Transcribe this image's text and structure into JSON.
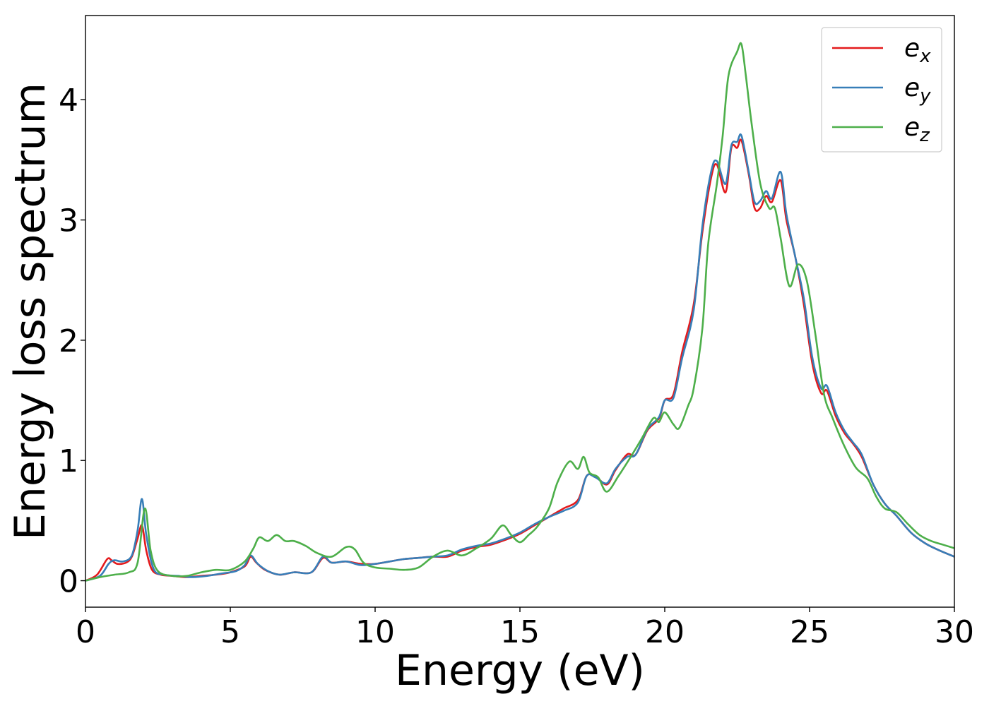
{
  "chart_data": {
    "type": "line",
    "xlabel": "Energy (eV)",
    "ylabel": "Energy loss spectrum",
    "xlim": [
      0,
      30
    ],
    "ylim": [
      -0.22,
      4.7
    ],
    "x_ticks": [
      0,
      5,
      10,
      15,
      20,
      25,
      30
    ],
    "y_ticks": [
      0,
      1,
      2,
      3,
      4
    ],
    "grid": false,
    "legend_position": "top-right",
    "series": [
      {
        "name": "e",
        "subscript": "x",
        "color": "#e41a1c",
        "points": [
          [
            0,
            0
          ],
          [
            0.4,
            0.05
          ],
          [
            0.75,
            0.18
          ],
          [
            0.9,
            0.17
          ],
          [
            1.1,
            0.14
          ],
          [
            1.4,
            0.15
          ],
          [
            1.6,
            0.2
          ],
          [
            1.8,
            0.35
          ],
          [
            1.95,
            0.46
          ],
          [
            2.1,
            0.25
          ],
          [
            2.3,
            0.09
          ],
          [
            2.6,
            0.05
          ],
          [
            3.0,
            0.04
          ],
          [
            3.5,
            0.03
          ],
          [
            4.0,
            0.04
          ],
          [
            4.5,
            0.05
          ],
          [
            5.0,
            0.07
          ],
          [
            5.5,
            0.12
          ],
          [
            5.7,
            0.2
          ],
          [
            5.9,
            0.15
          ],
          [
            6.2,
            0.09
          ],
          [
            6.7,
            0.05
          ],
          [
            7.2,
            0.07
          ],
          [
            7.8,
            0.07
          ],
          [
            8.2,
            0.19
          ],
          [
            8.5,
            0.15
          ],
          [
            9.0,
            0.16
          ],
          [
            9.5,
            0.14
          ],
          [
            10.0,
            0.14
          ],
          [
            10.5,
            0.16
          ],
          [
            11.0,
            0.18
          ],
          [
            11.5,
            0.19
          ],
          [
            12.0,
            0.2
          ],
          [
            12.5,
            0.2
          ],
          [
            13.0,
            0.25
          ],
          [
            13.5,
            0.28
          ],
          [
            14.0,
            0.3
          ],
          [
            14.5,
            0.34
          ],
          [
            15.0,
            0.39
          ],
          [
            15.5,
            0.46
          ],
          [
            16.0,
            0.53
          ],
          [
            16.5,
            0.6
          ],
          [
            17.0,
            0.67
          ],
          [
            17.3,
            0.87
          ],
          [
            17.6,
            0.87
          ],
          [
            18.0,
            0.8
          ],
          [
            18.3,
            0.92
          ],
          [
            18.7,
            1.05
          ],
          [
            19.0,
            1.05
          ],
          [
            19.4,
            1.25
          ],
          [
            19.8,
            1.35
          ],
          [
            20.0,
            1.5
          ],
          [
            20.3,
            1.55
          ],
          [
            20.6,
            1.9
          ],
          [
            21.0,
            2.3
          ],
          [
            21.3,
            2.9
          ],
          [
            21.6,
            3.35
          ],
          [
            21.8,
            3.46
          ],
          [
            22.1,
            3.23
          ],
          [
            22.3,
            3.6
          ],
          [
            22.5,
            3.6
          ],
          [
            22.65,
            3.66
          ],
          [
            22.9,
            3.38
          ],
          [
            23.1,
            3.1
          ],
          [
            23.3,
            3.1
          ],
          [
            23.5,
            3.2
          ],
          [
            23.7,
            3.15
          ],
          [
            24.0,
            3.33
          ],
          [
            24.2,
            3.0
          ],
          [
            24.5,
            2.7
          ],
          [
            24.8,
            2.3
          ],
          [
            25.1,
            1.8
          ],
          [
            25.4,
            1.56
          ],
          [
            25.6,
            1.58
          ],
          [
            25.9,
            1.37
          ],
          [
            26.2,
            1.23
          ],
          [
            26.5,
            1.14
          ],
          [
            26.8,
            1.03
          ],
          [
            27.2,
            0.8
          ],
          [
            27.6,
            0.64
          ],
          [
            28.0,
            0.54
          ],
          [
            28.5,
            0.4
          ],
          [
            29.0,
            0.31
          ],
          [
            29.5,
            0.25
          ],
          [
            30.0,
            0.2
          ]
        ]
      },
      {
        "name": "e",
        "subscript": "y",
        "color": "#377eb8",
        "points": [
          [
            0,
            0
          ],
          [
            0.5,
            0.04
          ],
          [
            0.8,
            0.14
          ],
          [
            1.0,
            0.17
          ],
          [
            1.3,
            0.16
          ],
          [
            1.6,
            0.21
          ],
          [
            1.8,
            0.42
          ],
          [
            1.95,
            0.68
          ],
          [
            2.1,
            0.38
          ],
          [
            2.35,
            0.1
          ],
          [
            2.7,
            0.05
          ],
          [
            3.2,
            0.04
          ],
          [
            3.7,
            0.03
          ],
          [
            4.2,
            0.04
          ],
          [
            4.7,
            0.06
          ],
          [
            5.2,
            0.08
          ],
          [
            5.5,
            0.13
          ],
          [
            5.7,
            0.21
          ],
          [
            5.95,
            0.14
          ],
          [
            6.3,
            0.08
          ],
          [
            6.7,
            0.05
          ],
          [
            7.2,
            0.07
          ],
          [
            7.8,
            0.07
          ],
          [
            8.2,
            0.2
          ],
          [
            8.5,
            0.15
          ],
          [
            9.0,
            0.16
          ],
          [
            9.5,
            0.13
          ],
          [
            10.0,
            0.14
          ],
          [
            10.5,
            0.16
          ],
          [
            11.0,
            0.18
          ],
          [
            11.5,
            0.19
          ],
          [
            12.0,
            0.2
          ],
          [
            12.5,
            0.21
          ],
          [
            13.0,
            0.26
          ],
          [
            13.5,
            0.29
          ],
          [
            14.0,
            0.31
          ],
          [
            14.5,
            0.35
          ],
          [
            15.0,
            0.4
          ],
          [
            15.5,
            0.47
          ],
          [
            16.0,
            0.53
          ],
          [
            16.5,
            0.58
          ],
          [
            17.0,
            0.65
          ],
          [
            17.3,
            0.87
          ],
          [
            17.6,
            0.86
          ],
          [
            18.0,
            0.81
          ],
          [
            18.3,
            0.93
          ],
          [
            18.7,
            1.03
          ],
          [
            19.0,
            1.05
          ],
          [
            19.4,
            1.26
          ],
          [
            19.8,
            1.36
          ],
          [
            20.0,
            1.5
          ],
          [
            20.3,
            1.52
          ],
          [
            20.6,
            1.85
          ],
          [
            21.0,
            2.25
          ],
          [
            21.3,
            2.95
          ],
          [
            21.6,
            3.4
          ],
          [
            21.8,
            3.49
          ],
          [
            22.1,
            3.3
          ],
          [
            22.3,
            3.62
          ],
          [
            22.5,
            3.65
          ],
          [
            22.65,
            3.7
          ],
          [
            22.9,
            3.4
          ],
          [
            23.1,
            3.15
          ],
          [
            23.3,
            3.16
          ],
          [
            23.5,
            3.24
          ],
          [
            23.7,
            3.18
          ],
          [
            24.0,
            3.4
          ],
          [
            24.2,
            3.05
          ],
          [
            24.5,
            2.7
          ],
          [
            24.8,
            2.35
          ],
          [
            25.1,
            1.85
          ],
          [
            25.4,
            1.6
          ],
          [
            25.6,
            1.62
          ],
          [
            25.9,
            1.4
          ],
          [
            26.2,
            1.25
          ],
          [
            26.5,
            1.15
          ],
          [
            26.8,
            1.05
          ],
          [
            27.2,
            0.8
          ],
          [
            27.6,
            0.64
          ],
          [
            28.0,
            0.54
          ],
          [
            28.5,
            0.4
          ],
          [
            29.0,
            0.31
          ],
          [
            29.5,
            0.25
          ],
          [
            30.0,
            0.2
          ]
        ]
      },
      {
        "name": "e",
        "subscript": "z",
        "color": "#4daf4a",
        "points": [
          [
            0,
            0
          ],
          [
            0.5,
            0.03
          ],
          [
            1.0,
            0.05
          ],
          [
            1.5,
            0.07
          ],
          [
            1.8,
            0.15
          ],
          [
            2.05,
            0.6
          ],
          [
            2.25,
            0.25
          ],
          [
            2.5,
            0.08
          ],
          [
            3.0,
            0.04
          ],
          [
            3.5,
            0.04
          ],
          [
            4.0,
            0.07
          ],
          [
            4.5,
            0.09
          ],
          [
            5.0,
            0.09
          ],
          [
            5.5,
            0.16
          ],
          [
            5.8,
            0.27
          ],
          [
            6.0,
            0.36
          ],
          [
            6.3,
            0.33
          ],
          [
            6.6,
            0.38
          ],
          [
            6.9,
            0.33
          ],
          [
            7.2,
            0.33
          ],
          [
            7.6,
            0.29
          ],
          [
            8.0,
            0.23
          ],
          [
            8.5,
            0.2
          ],
          [
            9.0,
            0.28
          ],
          [
            9.3,
            0.26
          ],
          [
            9.6,
            0.15
          ],
          [
            10.0,
            0.11
          ],
          [
            10.5,
            0.1
          ],
          [
            11.0,
            0.09
          ],
          [
            11.5,
            0.11
          ],
          [
            12.0,
            0.2
          ],
          [
            12.5,
            0.25
          ],
          [
            13.0,
            0.21
          ],
          [
            13.5,
            0.27
          ],
          [
            14.0,
            0.35
          ],
          [
            14.4,
            0.46
          ],
          [
            14.7,
            0.38
          ],
          [
            15.0,
            0.32
          ],
          [
            15.3,
            0.38
          ],
          [
            15.6,
            0.45
          ],
          [
            16.0,
            0.6
          ],
          [
            16.3,
            0.82
          ],
          [
            16.7,
            0.99
          ],
          [
            17.0,
            0.93
          ],
          [
            17.2,
            1.03
          ],
          [
            17.4,
            0.9
          ],
          [
            17.7,
            0.86
          ],
          [
            18.0,
            0.74
          ],
          [
            18.4,
            0.87
          ],
          [
            18.8,
            1.02
          ],
          [
            19.2,
            1.18
          ],
          [
            19.6,
            1.35
          ],
          [
            19.8,
            1.32
          ],
          [
            20.0,
            1.4
          ],
          [
            20.3,
            1.3
          ],
          [
            20.5,
            1.27
          ],
          [
            20.8,
            1.45
          ],
          [
            21.0,
            1.6
          ],
          [
            21.3,
            2.1
          ],
          [
            21.5,
            2.8
          ],
          [
            21.8,
            3.3
          ],
          [
            22.0,
            3.7
          ],
          [
            22.2,
            4.2
          ],
          [
            22.5,
            4.4
          ],
          [
            22.65,
            4.46
          ],
          [
            22.8,
            4.2
          ],
          [
            23.0,
            3.8
          ],
          [
            23.3,
            3.3
          ],
          [
            23.6,
            3.1
          ],
          [
            23.8,
            3.1
          ],
          [
            24.0,
            2.85
          ],
          [
            24.3,
            2.45
          ],
          [
            24.6,
            2.63
          ],
          [
            24.9,
            2.5
          ],
          [
            25.2,
            2.05
          ],
          [
            25.5,
            1.55
          ],
          [
            25.8,
            1.35
          ],
          [
            26.2,
            1.12
          ],
          [
            26.6,
            0.94
          ],
          [
            27.0,
            0.85
          ],
          [
            27.3,
            0.7
          ],
          [
            27.6,
            0.6
          ],
          [
            28.0,
            0.57
          ],
          [
            28.4,
            0.47
          ],
          [
            28.8,
            0.38
          ],
          [
            29.2,
            0.33
          ],
          [
            29.6,
            0.3
          ],
          [
            30.0,
            0.27
          ]
        ]
      }
    ]
  }
}
